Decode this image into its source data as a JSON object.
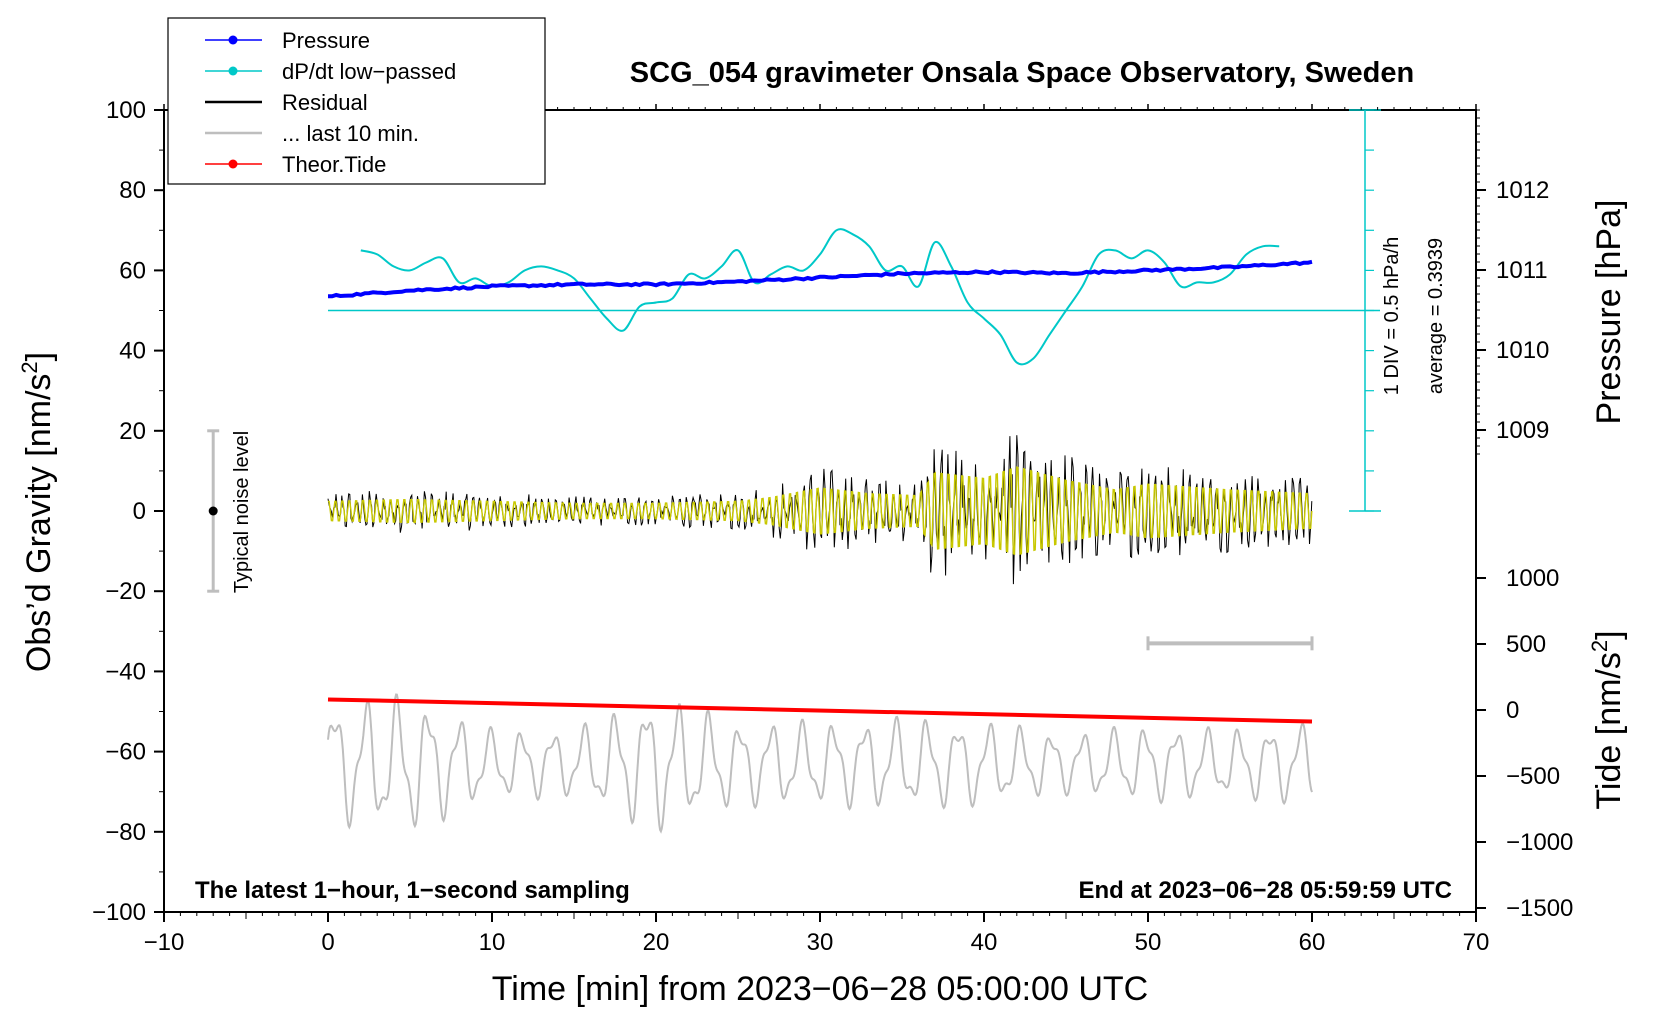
{
  "chart_data": {
    "type": "line",
    "title": "SCG_054 gravimeter Onsala Space Observatory, Sweden",
    "xlabel": "Time [min] from 2023−06−28 05:00:00 UTC",
    "ylabel_left": "Obs’d Gravity [nm/s",
    "ylabel_left_sup": "2",
    "ylabel_left_end": "]",
    "ylabel_pressure": "Pressure [hPa]",
    "ylabel_tide": "Tide [nm/s",
    "ylabel_tide_sup": "2",
    "ylabel_tide_end": "]",
    "xlim": [
      -10,
      70
    ],
    "ylim": [
      -100,
      100
    ],
    "x_ticks": [
      "−10",
      "0",
      "10",
      "20",
      "30",
      "40",
      "50",
      "60",
      "70"
    ],
    "y_ticks": [
      "−100",
      "−80",
      "−60",
      "−40",
      "−20",
      "0",
      "20",
      "40",
      "60",
      "80",
      "100"
    ],
    "pressure_ticks": [
      "1009",
      "1010",
      "1011",
      "1012"
    ],
    "pressure_tick_values": [
      1009,
      1010,
      1011,
      1012
    ],
    "tide_ticks": [
      "−1500",
      "−1000",
      "−500",
      "0",
      "500",
      "1000"
    ],
    "tide_tick_values": [
      -1500,
      -1000,
      -500,
      0,
      500,
      1000
    ],
    "legend": {
      "position": "top-left",
      "entries": [
        {
          "label": "Pressure",
          "color": "#0000ff",
          "marker": true
        },
        {
          "label": "dP/dt low−passed",
          "color": "#00c8c8",
          "marker": true
        },
        {
          "label": "Residual",
          "color": "#000000",
          "marker": false
        },
        {
          "label": "... last 10 min.",
          "color": "#bebebe",
          "marker": false
        },
        {
          "label": "Theor.Tide",
          "color": "#ff0000",
          "marker": true
        }
      ]
    },
    "annotations": {
      "noise_label": "Typical noise level",
      "noise_range": [
        -20,
        20
      ],
      "noise_x": -7,
      "scale_label": "1 DIV = 0.5 hPa/h",
      "average_label": "average = 0.3939",
      "bottom_left": "The latest 1−hour, 1−second sampling",
      "bottom_right": "End at 2023−06−28 05:59:59 UTC",
      "last10_bar_x": [
        50,
        60
      ],
      "last10_bar_y": -33,
      "dpdt_zero_level": 50
    },
    "series": [
      {
        "name": "Pressure",
        "color": "#0000ff",
        "x": [
          0,
          5,
          10,
          15,
          20,
          25,
          30,
          35,
          40,
          45,
          50,
          55,
          60
        ],
        "values": [
          53.5,
          55,
          56,
          56.5,
          56.5,
          57.2,
          58.2,
          59.2,
          59.6,
          59.3,
          60.0,
          60.8,
          62.0
        ]
      },
      {
        "name": "dP/dt low-passed",
        "color": "#00c8c8",
        "x": [
          2,
          3,
          4,
          5,
          6,
          7,
          8,
          9,
          10,
          11,
          12,
          13,
          14,
          15,
          16,
          17,
          18,
          19,
          20,
          21,
          22,
          23,
          24,
          25,
          26,
          27,
          28,
          29,
          30,
          31,
          32,
          33,
          34,
          35,
          36,
          37,
          38,
          39,
          40,
          41,
          42,
          43,
          44,
          45,
          46,
          47,
          48,
          49,
          50,
          51,
          52,
          53,
          54,
          55,
          56,
          57,
          58
        ],
        "values": [
          65,
          64,
          61,
          60,
          62,
          63,
          57,
          58,
          56,
          57,
          60,
          61,
          60,
          58,
          53,
          48,
          45,
          51,
          52,
          53,
          59,
          58,
          61,
          65,
          57,
          59,
          61,
          60,
          64,
          70,
          69,
          66,
          60,
          61,
          56,
          67,
          61,
          52,
          48,
          44,
          37,
          38,
          44,
          50,
          56,
          64,
          65,
          63,
          65,
          62,
          56,
          57,
          57,
          59,
          64,
          66,
          66
        ]
      },
      {
        "name": "Residual",
        "color": "#000000",
        "style": "oscillation",
        "envelope_x": [
          0,
          5,
          10,
          15,
          20,
          25,
          27,
          30,
          33,
          36,
          37,
          40,
          42,
          45,
          48,
          50,
          55,
          60
        ],
        "envelope_y": [
          5,
          6,
          5,
          4,
          4,
          5,
          7,
          12,
          9,
          8,
          20,
          17,
          23,
          16,
          11,
          14,
          11,
          9
        ]
      },
      {
        "name": "last 10 min.",
        "color": "#bebebe",
        "style": "oscillation",
        "offset": -63,
        "envelope_x": [
          0,
          5,
          10,
          15,
          20,
          25,
          30,
          35,
          40,
          45,
          50,
          55,
          60
        ],
        "envelope_y": [
          16,
          18,
          9,
          9,
          18,
          11,
          11,
          12,
          11,
          8,
          10,
          9,
          11
        ]
      },
      {
        "name": "Theor.Tide",
        "color": "#ff0000",
        "x": [
          0,
          60
        ],
        "values": [
          -47,
          -52.5
        ]
      }
    ]
  }
}
